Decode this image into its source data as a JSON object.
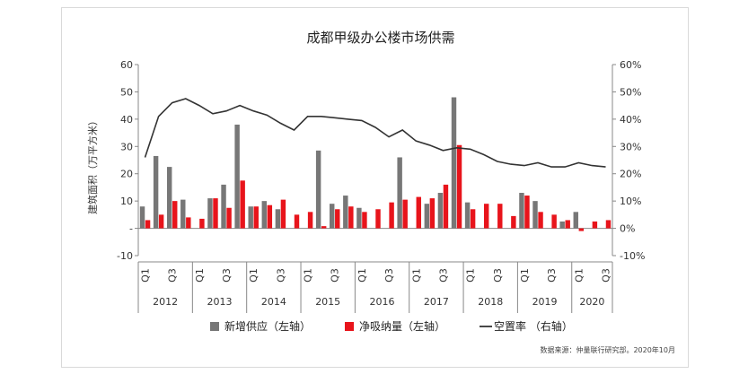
{
  "chart_data": {
    "type": "bar",
    "title": "成都甲级办公楼市场供需",
    "ylabel": "建筑面积（万平方米）",
    "xlabel": "",
    "ylim": [
      -10,
      60
    ],
    "y2lim": [
      -0.1,
      0.6
    ],
    "yticks": [
      "-10",
      "-",
      "10",
      "20",
      "30",
      "40",
      "50",
      "60"
    ],
    "y2ticks": [
      "-10%",
      "0%",
      "10%",
      "20%",
      "30%",
      "40%",
      "50%",
      "60%"
    ],
    "quarter_labels": [
      "Q1",
      "Q3"
    ],
    "years": [
      "2012",
      "2013",
      "2014",
      "2015",
      "2016",
      "2017",
      "2018",
      "2019",
      "2020"
    ],
    "categories": [
      "2012Q1",
      "2012Q2",
      "2012Q3",
      "2012Q4",
      "2013Q1",
      "2013Q2",
      "2013Q3",
      "2013Q4",
      "2014Q1",
      "2014Q2",
      "2014Q3",
      "2014Q4",
      "2015Q1",
      "2015Q2",
      "2015Q3",
      "2015Q4",
      "2016Q1",
      "2016Q2",
      "2016Q3",
      "2016Q4",
      "2017Q1",
      "2017Q2",
      "2017Q3",
      "2017Q4",
      "2018Q1",
      "2018Q2",
      "2018Q3",
      "2018Q4",
      "2019Q1",
      "2019Q2",
      "2019Q3",
      "2019Q4",
      "2020Q1",
      "2020Q2",
      "2020Q3"
    ],
    "series": [
      {
        "name": "新增供应（左轴）",
        "type": "bar",
        "color": "#777777",
        "values": [
          8,
          26.5,
          22.5,
          10.5,
          0,
          11,
          16,
          38,
          8,
          10,
          7,
          0,
          0,
          28.5,
          9,
          12,
          7.5,
          0,
          0,
          26,
          0,
          9,
          13,
          48,
          9.5,
          0,
          0,
          0,
          13,
          10,
          0,
          2.5,
          6,
          0,
          0
        ]
      },
      {
        "name": "净吸纳量（左轴）",
        "type": "bar",
        "color": "#e8141b",
        "values": [
          3,
          5,
          10,
          4,
          3.5,
          11,
          7.5,
          17.5,
          8,
          8.5,
          10.5,
          5,
          6,
          0.8,
          7,
          8,
          6,
          7,
          9.5,
          10.5,
          11.5,
          11,
          16,
          30.5,
          7,
          9,
          9,
          4.5,
          12,
          6,
          5,
          3,
          -1,
          2.5,
          3
        ]
      },
      {
        "name": "空置率 （右轴）",
        "type": "line",
        "color": "#333333",
        "values": [
          0.26,
          0.41,
          0.46,
          0.475,
          0.45,
          0.42,
          0.43,
          0.45,
          0.43,
          0.415,
          0.385,
          0.36,
          0.41,
          0.41,
          0.405,
          0.4,
          0.395,
          0.37,
          0.335,
          0.36,
          0.32,
          0.305,
          0.285,
          0.295,
          0.29,
          0.27,
          0.245,
          0.235,
          0.23,
          0.24,
          0.225,
          0.225,
          0.24,
          0.23,
          0.225
        ]
      }
    ],
    "legend_position": "bottom",
    "grid": false,
    "source": "数据来源：仲量联行研究部。2020年10月"
  }
}
